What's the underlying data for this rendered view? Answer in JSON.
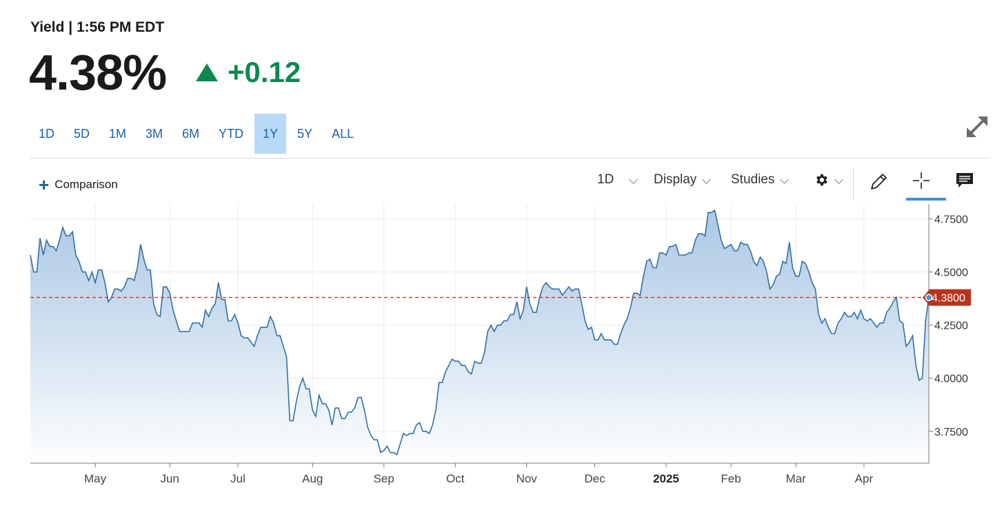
{
  "header": {
    "label": "Yield | 1:56 PM EDT",
    "value": "4.38%",
    "change": "+0.12",
    "change_color": "#0c8a4e",
    "change_icon": "up-triangle-icon"
  },
  "ranges": {
    "items": [
      {
        "label": "1D",
        "active": false
      },
      {
        "label": "5D",
        "active": false
      },
      {
        "label": "1M",
        "active": false
      },
      {
        "label": "3M",
        "active": false
      },
      {
        "label": "6M",
        "active": false
      },
      {
        "label": "YTD",
        "active": false
      },
      {
        "label": "1Y",
        "active": true
      },
      {
        "label": "5Y",
        "active": false
      },
      {
        "label": "ALL",
        "active": false
      }
    ]
  },
  "toolbar": {
    "comparison": "Comparison",
    "interval": "1D",
    "display": "Display",
    "studies": "Studies",
    "icons": [
      "gear-icon",
      "pencil-icon",
      "crosshair-icon",
      "comment-icon"
    ]
  },
  "chart_data": {
    "type": "area",
    "series": [
      {
        "values": [
          4.58,
          4.5,
          4.5,
          4.66,
          4.58,
          4.65,
          4.62,
          4.62,
          4.6,
          4.65,
          4.71,
          4.67,
          4.67,
          4.69,
          4.58,
          4.55,
          4.5,
          4.5,
          4.46,
          4.5,
          4.45,
          4.51,
          4.51,
          4.45,
          4.36,
          4.38,
          4.42,
          4.42,
          4.41,
          4.43,
          4.47,
          4.47,
          4.46,
          4.52,
          4.63,
          4.56,
          4.51,
          4.51,
          4.35,
          4.3,
          4.29,
          4.43,
          4.43,
          4.4,
          4.32,
          4.27,
          4.22,
          4.22,
          4.22,
          4.22,
          4.26,
          4.26,
          4.26,
          4.24,
          4.32,
          4.29,
          4.33,
          4.35,
          4.45,
          4.37,
          4.37,
          4.27,
          4.27,
          4.3,
          4.26,
          4.2,
          4.19,
          4.19,
          4.17,
          4.15,
          4.2,
          4.24,
          4.24,
          4.24,
          4.29,
          4.26,
          4.2,
          4.2,
          4.15,
          4.1,
          3.8,
          3.8,
          3.89,
          3.96,
          4.0,
          3.95,
          3.95,
          3.85,
          3.82,
          3.92,
          3.88,
          3.88,
          3.85,
          3.78,
          3.86,
          3.86,
          3.81,
          3.81,
          3.84,
          3.84,
          3.86,
          3.91,
          3.91,
          3.85,
          3.77,
          3.73,
          3.71,
          3.71,
          3.65,
          3.66,
          3.68,
          3.65,
          3.65,
          3.64,
          3.69,
          3.74,
          3.73,
          3.74,
          3.74,
          3.78,
          3.79,
          3.75,
          3.75,
          3.74,
          3.78,
          3.85,
          3.98,
          3.98,
          4.03,
          4.06,
          4.09,
          4.08,
          4.08,
          4.06,
          4.06,
          4.03,
          4.02,
          4.08,
          4.07,
          4.07,
          4.12,
          4.22,
          4.25,
          4.22,
          4.25,
          4.25,
          4.27,
          4.27,
          4.3,
          4.3,
          4.36,
          4.28,
          4.32,
          4.43,
          4.35,
          4.31,
          4.31,
          4.38,
          4.43,
          4.45,
          4.43,
          4.42,
          4.42,
          4.42,
          4.39,
          4.41,
          4.43,
          4.41,
          4.42,
          4.42,
          4.35,
          4.27,
          4.23,
          4.24,
          4.18,
          4.18,
          4.21,
          4.18,
          4.18,
          4.18,
          4.16,
          4.16,
          4.21,
          4.25,
          4.28,
          4.33,
          4.4,
          4.4,
          4.39,
          4.48,
          4.55,
          4.56,
          4.52,
          4.52,
          4.59,
          4.59,
          4.58,
          4.62,
          4.62,
          4.63,
          4.58,
          4.58,
          4.58,
          4.59,
          4.59,
          4.65,
          4.68,
          4.68,
          4.67,
          4.78,
          4.78,
          4.79,
          4.72,
          4.65,
          4.61,
          4.62,
          4.63,
          4.6,
          4.6,
          4.64,
          4.63,
          4.63,
          4.6,
          4.55,
          4.53,
          4.57,
          4.55,
          4.5,
          4.42,
          4.44,
          4.48,
          4.49,
          4.55,
          4.54,
          4.64,
          4.52,
          4.48,
          4.48,
          4.55,
          4.54,
          4.5,
          4.45,
          4.42,
          4.3,
          4.26,
          4.28,
          4.24,
          4.21,
          4.21,
          4.26,
          4.28,
          4.31,
          4.29,
          4.29,
          4.31,
          4.28,
          4.32,
          4.28,
          4.27,
          4.28,
          4.26,
          4.24,
          4.26,
          4.26,
          4.31,
          4.33,
          4.36,
          4.38,
          4.27,
          4.26,
          4.15,
          4.17,
          4.2,
          4.06,
          3.99,
          4.0,
          4.27,
          4.38
        ]
      }
    ],
    "x_labels": [
      {
        "label": "May",
        "bold": false
      },
      {
        "label": "Jun",
        "bold": false
      },
      {
        "label": "Jul",
        "bold": false
      },
      {
        "label": "Aug",
        "bold": false
      },
      {
        "label": "Sep",
        "bold": false
      },
      {
        "label": "Oct",
        "bold": false
      },
      {
        "label": "Nov",
        "bold": false
      },
      {
        "label": "Dec",
        "bold": false
      },
      {
        "label": "2025",
        "bold": true
      },
      {
        "label": "Feb",
        "bold": false
      },
      {
        "label": "Mar",
        "bold": false
      },
      {
        "label": "Apr",
        "bold": false
      }
    ],
    "x_label_index": [
      20,
      43,
      64,
      87,
      109,
      131,
      153,
      174,
      196,
      216,
      236,
      257
    ],
    "y_ticks": [
      "4.7500",
      "4.5000",
      "4.2500",
      "4.0000",
      "3.7500"
    ],
    "y_tick_values": [
      4.75,
      4.5,
      4.25,
      4.0,
      3.75
    ],
    "ylim": [
      3.6,
      4.82
    ],
    "current_value": 4.38,
    "current_label": "4.3800",
    "line_color": "#2f6fa8",
    "fill_color": "#9ebfe0",
    "ref_line_color": "#c0392b",
    "price_tag_color": "#b8321f",
    "grid": true
  }
}
